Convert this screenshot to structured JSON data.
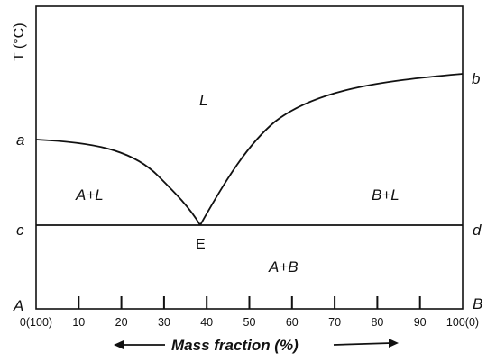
{
  "y_axis_label": "T (°C)",
  "x_axis_label": "Mass fraction (%)",
  "corner_labels": {
    "a": "a",
    "b": "b",
    "c": "c",
    "d": "d",
    "A": "A",
    "B": "B"
  },
  "eutectic_label": "E",
  "region_labels": {
    "liquid": "L",
    "a_plus_l": "A+L",
    "b_plus_l": "B+L",
    "a_plus_b": "A+B"
  },
  "x_ticks": [
    "0(100)",
    "10",
    "20",
    "30",
    "40",
    "50",
    "60",
    "70",
    "80",
    "90",
    "100(0)"
  ],
  "colors": {
    "line": "#111111",
    "text": "#111111",
    "background": "#ffffff"
  }
}
